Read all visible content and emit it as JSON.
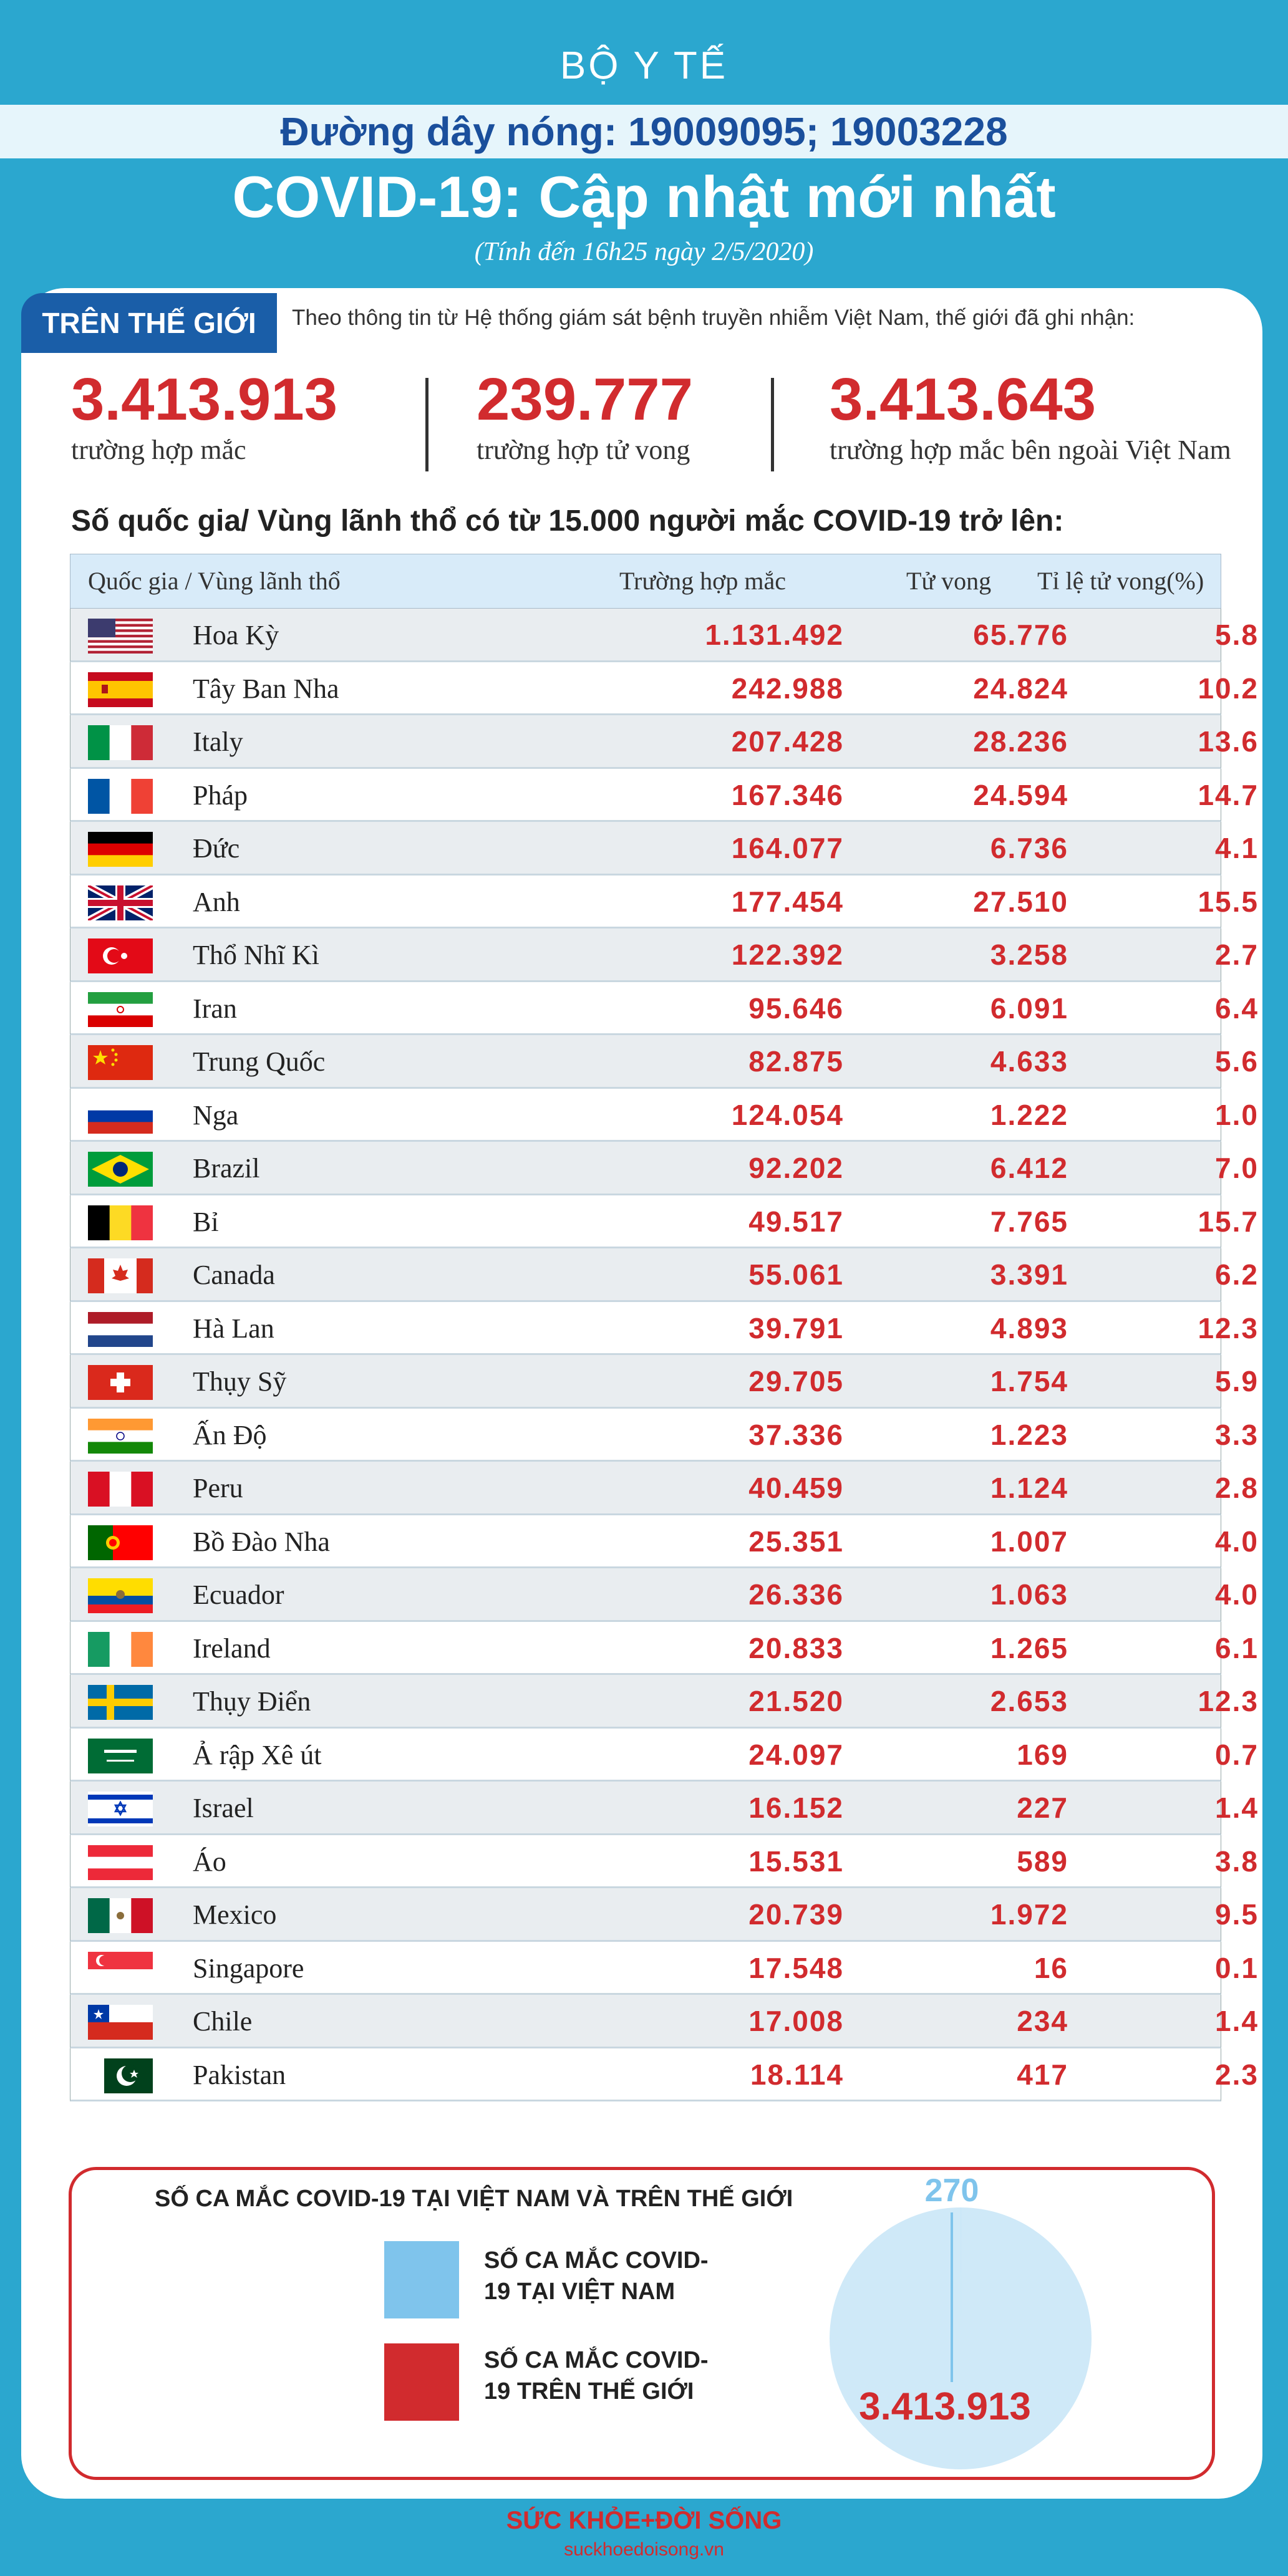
{
  "header": {
    "org": "BỘ Y TẾ",
    "hotline": "Đường dây nóng: 19009095; 19003228",
    "title": "COVID-19: Cập nhật mới nhất",
    "subtitle": "(Tính đến 16h25 ngày 2/5/2020)"
  },
  "world": {
    "tag": "TRÊN THẾ GIỚI",
    "intro": "Theo thông tin từ Hệ thống giám sát bệnh truyền nhiễm Việt Nam, thế giới đã ghi nhận:",
    "stats": [
      {
        "value": "3.413.913",
        "label": "trường hợp mắc"
      },
      {
        "value": "239.777",
        "label": "trường hợp tử vong"
      },
      {
        "value": "3.413.643",
        "label": "trường hợp  mắc bên ngoài Việt Nam"
      }
    ]
  },
  "table": {
    "heading": "Số quốc gia/ Vùng lãnh thổ có từ 15.000 người  mắc COVID-19 trở lên:",
    "columns": [
      "Quốc gia / Vùng lãnh thổ",
      "Trường hợp mắc",
      "Tử vong",
      "Tỉ lệ tử vong(%)"
    ],
    "rows": [
      {
        "country": "Hoa Kỳ",
        "flag": "us-flag",
        "cases": "1.131.492",
        "deaths": "65.776",
        "rate": "5.8"
      },
      {
        "country": "Tây Ban Nha",
        "flag": "spain-flag",
        "cases": "242.988",
        "deaths": "24.824",
        "rate": "10.2"
      },
      {
        "country": "Italy",
        "flag": "italy-flag",
        "cases": "207.428",
        "deaths": "28.236",
        "rate": "13.6"
      },
      {
        "country": "Pháp",
        "flag": "france-flag",
        "cases": "167.346",
        "deaths": "24.594",
        "rate": "14.7"
      },
      {
        "country": "Đức",
        "flag": "germany-flag",
        "cases": "164.077",
        "deaths": "6.736",
        "rate": "4.1"
      },
      {
        "country": "Anh",
        "flag": "uk-flag",
        "cases": "177.454",
        "deaths": "27.510",
        "rate": "15.5"
      },
      {
        "country": "Thổ Nhĩ Kì",
        "flag": "turkey-flag",
        "cases": "122.392",
        "deaths": "3.258",
        "rate": "2.7"
      },
      {
        "country": "Iran",
        "flag": "iran-flag",
        "cases": "95.646",
        "deaths": "6.091",
        "rate": "6.4"
      },
      {
        "country": "Trung Quốc",
        "flag": "china-flag",
        "cases": "82.875",
        "deaths": "4.633",
        "rate": "5.6"
      },
      {
        "country": "Nga",
        "flag": "russia-flag",
        "cases": "124.054",
        "deaths": "1.222",
        "rate": "1.0"
      },
      {
        "country": "Brazil",
        "flag": "brazil-flag",
        "cases": "92.202",
        "deaths": "6.412",
        "rate": "7.0"
      },
      {
        "country": "Bỉ",
        "flag": "belgium-flag",
        "cases": "49.517",
        "deaths": "7.765",
        "rate": "15.7"
      },
      {
        "country": "Canada",
        "flag": "canada-flag",
        "cases": "55.061",
        "deaths": "3.391",
        "rate": "6.2"
      },
      {
        "country": "Hà Lan",
        "flag": "netherlands-flag",
        "cases": "39.791",
        "deaths": "4.893",
        "rate": "12.3"
      },
      {
        "country": "Thụy Sỹ",
        "flag": "switzerland-flag",
        "cases": "29.705",
        "deaths": "1.754",
        "rate": "5.9"
      },
      {
        "country": "Ấn Độ",
        "flag": "india-flag",
        "cases": "37.336",
        "deaths": "1.223",
        "rate": "3.3"
      },
      {
        "country": "Peru",
        "flag": "peru-flag",
        "cases": "40.459",
        "deaths": "1.124",
        "rate": "2.8"
      },
      {
        "country": "Bồ Đào Nha",
        "flag": "portugal-flag",
        "cases": "25.351",
        "deaths": "1.007",
        "rate": "4.0"
      },
      {
        "country": "Ecuador",
        "flag": "ecuador-flag",
        "cases": "26.336",
        "deaths": "1.063",
        "rate": "4.0"
      },
      {
        "country": "Ireland",
        "flag": "ireland-flag",
        "cases": "20.833",
        "deaths": "1.265",
        "rate": "6.1"
      },
      {
        "country": "Thụy Điển",
        "flag": "sweden-flag",
        "cases": "21.520",
        "deaths": "2.653",
        "rate": "12.3"
      },
      {
        "country": "Ả rập Xê út",
        "flag": "saudi-arabia-flag",
        "cases": "24.097",
        "deaths": "169",
        "rate": "0.7"
      },
      {
        "country": "Israel",
        "flag": "israel-flag",
        "cases": "16.152",
        "deaths": "227",
        "rate": "1.4"
      },
      {
        "country": "Áo",
        "flag": "austria-flag",
        "cases": "15.531",
        "deaths": "589",
        "rate": "3.8"
      },
      {
        "country": "Mexico",
        "flag": "mexico-flag",
        "cases": "20.739",
        "deaths": "1.972",
        "rate": "9.5"
      },
      {
        "country": "Singapore",
        "flag": "singapore-flag",
        "cases": "17.548",
        "deaths": "16",
        "rate": "0.1"
      },
      {
        "country": "Chile",
        "flag": "chile-flag",
        "cases": "17.008",
        "deaths": "234",
        "rate": "1.4"
      },
      {
        "country": "Pakistan",
        "flag": "pakistan-flag",
        "cases": "18.114",
        "deaths": "417",
        "rate": "2.3"
      }
    ]
  },
  "chart_data": {
    "type": "pie",
    "title": "SỐ CA MẮC COVID-19 TẠI VIỆT NAM VÀ TRÊN THẾ GIỚI",
    "series": [
      {
        "name": "SỐ CA MẮC COVID-19 TẠI VIỆT NAM",
        "value": 270,
        "label": "270",
        "color": "#7fc4ec"
      },
      {
        "name": "SỐ CA MẮC COVID-19 TRÊN THẾ GIỚI",
        "value": 3413913,
        "label": "3.413.913",
        "color": "#d12b2e"
      }
    ],
    "legend": "left"
  },
  "footer": {
    "logo": "SỨC KHỎE+ĐỜI SỐNG",
    "url": "suckhoedoisong.vn"
  },
  "colors": {
    "background": "#2ba7cf",
    "accent_red": "#d12b2e",
    "brand_blue": "#1a5ea8",
    "pie_fill": "#cfe9f8"
  }
}
